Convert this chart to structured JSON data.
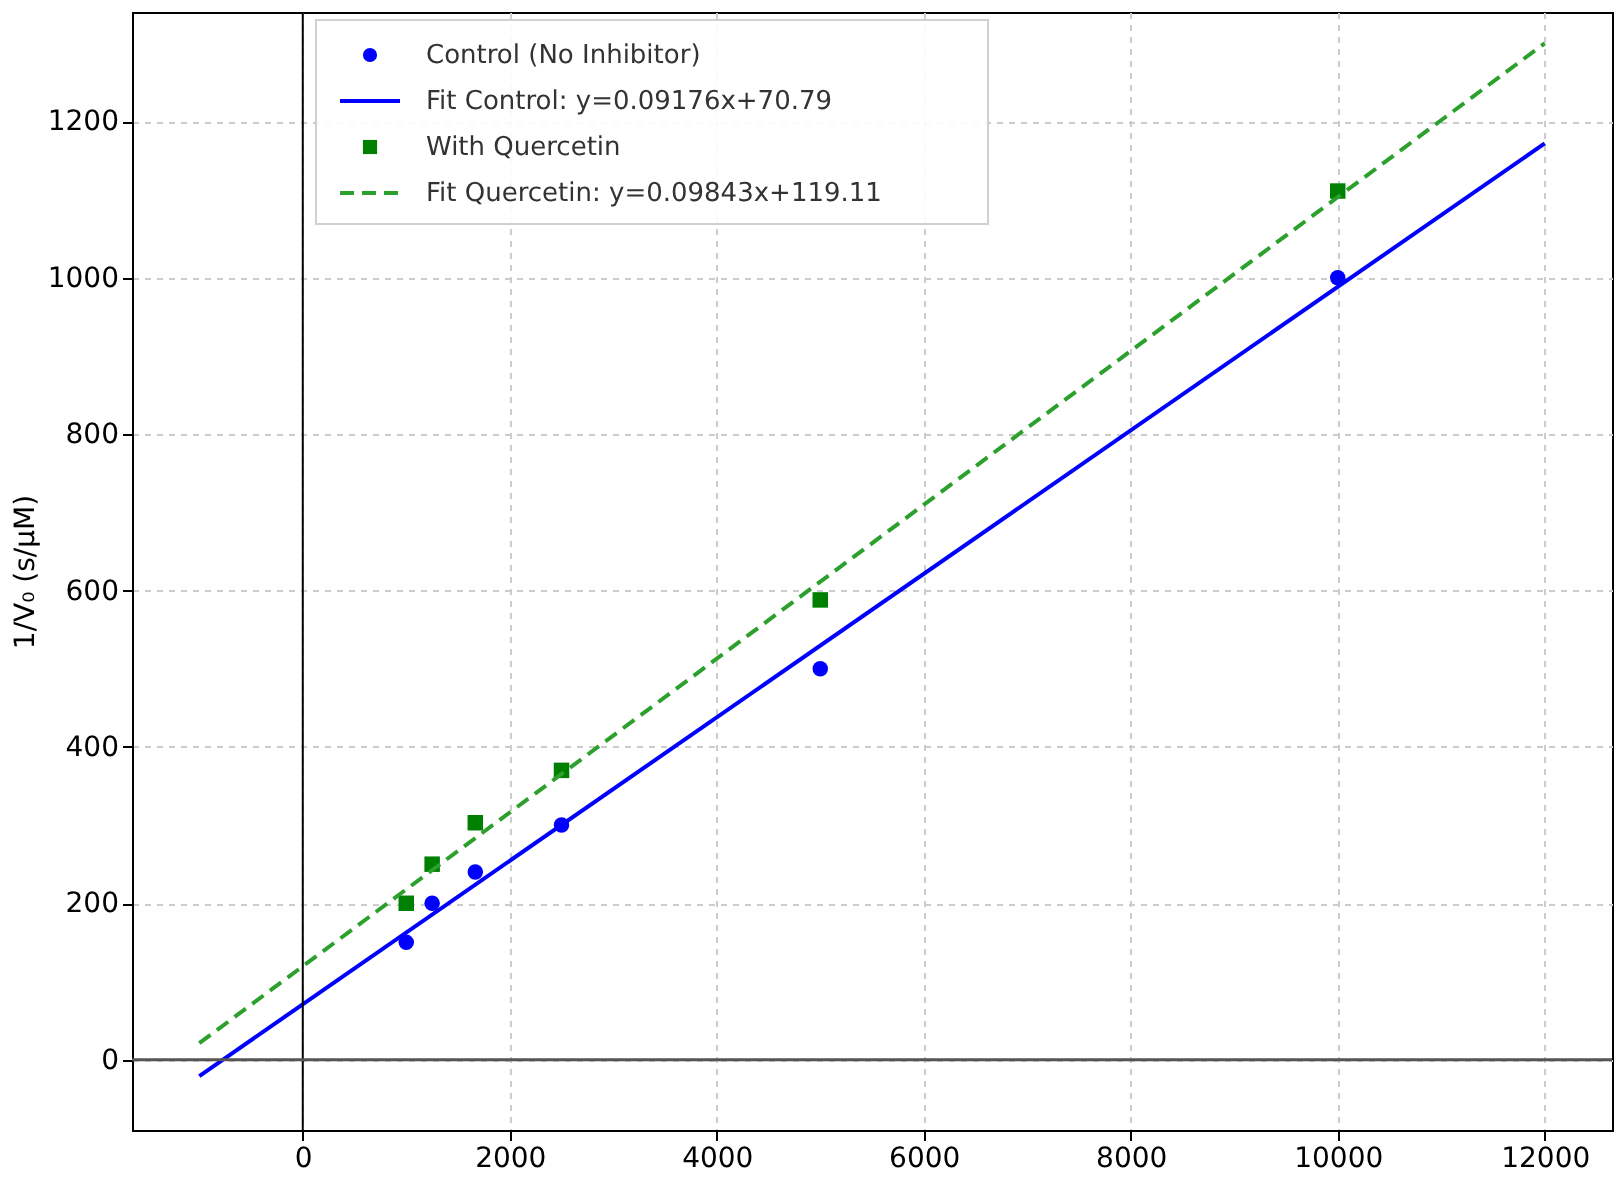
{
  "chart_data": {
    "type": "scatter",
    "ylabel": "1/V₀ (s/μM)",
    "xlim": [
      -1650,
      12650
    ],
    "ylim": [
      -90,
      1340
    ],
    "xticks": [
      0,
      2000,
      4000,
      6000,
      8000,
      10000,
      12000
    ],
    "yticks": [
      0,
      200,
      400,
      600,
      800,
      1000,
      1200
    ],
    "grid": true,
    "legend": "top",
    "ref_lines": [
      {
        "axis": "x",
        "value": 0,
        "color": "#000000"
      },
      {
        "axis": "y",
        "value": 0,
        "color": "#555555"
      }
    ],
    "series": [
      {
        "name": "Control (No Inhibitor)",
        "type": "scatter",
        "marker": "circle",
        "color": "#0000ff",
        "x": [
          1000,
          1250,
          1667,
          2500,
          5000,
          10000
        ],
        "values": [
          150,
          200,
          240,
          300,
          500,
          1000
        ]
      },
      {
        "name": "Fit Control: y=0.09176x+70.79",
        "type": "line",
        "marker": "none",
        "line_style": "solid",
        "color": "#0000ff",
        "x": [
          -1000,
          12000
        ],
        "values": [
          -21,
          1172
        ]
      },
      {
        "name": "With Quercetin",
        "type": "scatter",
        "marker": "square",
        "color": "#008000",
        "x": [
          1000,
          1250,
          1667,
          2500,
          5000,
          10000
        ],
        "values": [
          200,
          250,
          303,
          370,
          588,
          1111
        ]
      },
      {
        "name": "Fit Quercetin: y=0.09843x+119.11",
        "type": "line",
        "marker": "none",
        "line_style": "dashed",
        "color": "#2ca02c",
        "x": [
          -1000,
          12000
        ],
        "values": [
          21,
          1300
        ]
      }
    ]
  }
}
